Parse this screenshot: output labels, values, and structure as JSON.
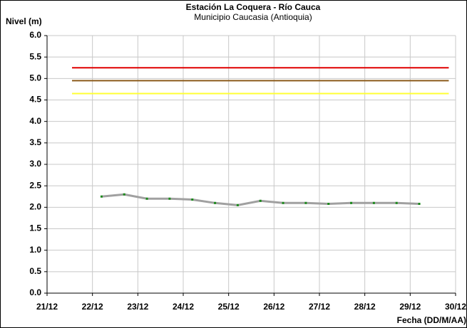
{
  "chart_data": {
    "type": "line",
    "title": "Estación La Coquera - Río Cauca",
    "subtitle": "Municipio Caucasia (Antioquia)",
    "y_label": "Nivel (m)",
    "x_label": "Fecha (DD/M/AA)",
    "x": [
      22.2,
      22.7,
      23.2,
      23.7,
      24.2,
      24.7,
      25.2,
      25.7,
      26.2,
      26.7,
      27.2,
      27.7,
      28.2,
      28.7,
      29.2
    ],
    "series": [
      {
        "color": "#a0a0a0",
        "marker_color": "#1a8a1a",
        "values": [
          2.25,
          2.3,
          2.2,
          2.2,
          2.18,
          2.1,
          2.05,
          2.15,
          2.1,
          2.1,
          2.08,
          2.1,
          2.1,
          2.1,
          2.08
        ]
      }
    ],
    "thresholds": [
      {
        "value": 5.25,
        "color": "#e00000",
        "x": [
          21.55,
          29.85
        ]
      },
      {
        "value": 4.95,
        "color": "#8b5a1a",
        "x": [
          21.55,
          29.85
        ]
      },
      {
        "value": 4.65,
        "color": "#ffff33",
        "x": [
          21.55,
          29.85
        ]
      }
    ],
    "xlim": [
      21,
      30
    ],
    "xticks": [
      {
        "value": 21,
        "label": "21/12"
      },
      {
        "value": 22,
        "label": "22/12"
      },
      {
        "value": 23,
        "label": "23/12"
      },
      {
        "value": 24,
        "label": "24/12"
      },
      {
        "value": 25,
        "label": "25/12"
      },
      {
        "value": 26,
        "label": "26/12"
      },
      {
        "value": 27,
        "label": "27/12"
      },
      {
        "value": 28,
        "label": "28/12"
      },
      {
        "value": 29,
        "label": "29/12"
      },
      {
        "value": 30,
        "label": "30/12"
      }
    ],
    "ylim": [
      0,
      6
    ],
    "yticks": [
      {
        "value": 0,
        "label": "0.0"
      },
      {
        "value": 0.5,
        "label": "0.5"
      },
      {
        "value": 1,
        "label": "1.0"
      },
      {
        "value": 1.5,
        "label": "1.5"
      },
      {
        "value": 2,
        "label": "2.0"
      },
      {
        "value": 2.5,
        "label": "2.5"
      },
      {
        "value": 3,
        "label": "3.0"
      },
      {
        "value": 3.5,
        "label": "3.5"
      },
      {
        "value": 4,
        "label": "4.0"
      },
      {
        "value": 4.5,
        "label": "4.5"
      },
      {
        "value": 5,
        "label": "5.0"
      },
      {
        "value": 5.5,
        "label": "5.5"
      },
      {
        "value": 6,
        "label": "6.0"
      }
    ],
    "grid": true
  }
}
